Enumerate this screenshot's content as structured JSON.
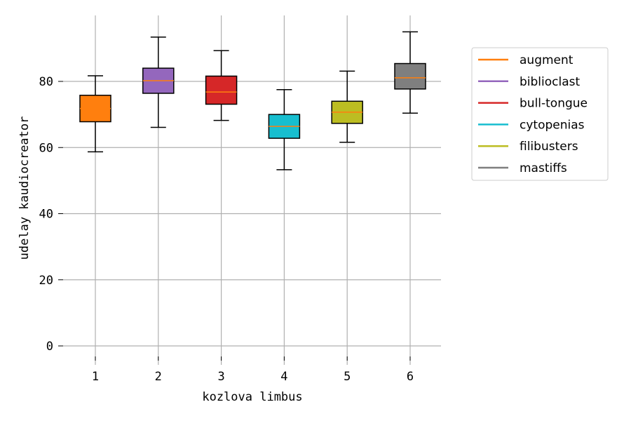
{
  "chart_data": {
    "type": "box",
    "xlabel": "kozlova limbus",
    "ylabel": "udelay kaudiocreator",
    "ylim": [
      -5,
      100
    ],
    "yticks": [
      0,
      20,
      40,
      60,
      80
    ],
    "categories": [
      "1",
      "2",
      "3",
      "4",
      "5",
      "6"
    ],
    "grid": true,
    "legend_position": "right, outside plot",
    "median_color": "#ff7f0e",
    "series": [
      {
        "name": "augment",
        "color": "#ff7f0e",
        "whisker_low": 58.7,
        "q1": 67.8,
        "median": 71.8,
        "q3": 75.8,
        "whisker_high": 81.7
      },
      {
        "name": "biblioclast",
        "color": "#9467bd",
        "whisker_low": 66.1,
        "q1": 76.4,
        "median": 80.2,
        "q3": 84.0,
        "whisker_high": 93.4
      },
      {
        "name": "bull-tongue",
        "color": "#d62728",
        "whisker_low": 68.2,
        "q1": 73.1,
        "median": 76.8,
        "q3": 81.6,
        "whisker_high": 89.3
      },
      {
        "name": "cytopenias",
        "color": "#17becf",
        "whisker_low": 53.3,
        "q1": 62.8,
        "median": 66.4,
        "q3": 70.0,
        "whisker_high": 77.5
      },
      {
        "name": "filibusters",
        "color": "#bcbd22",
        "whisker_low": 61.6,
        "q1": 67.3,
        "median": 70.7,
        "q3": 74.0,
        "whisker_high": 83.1
      },
      {
        "name": "mastiffs",
        "color": "#7f7f7f",
        "whisker_low": 70.4,
        "q1": 77.7,
        "median": 81.1,
        "q3": 85.4,
        "whisker_high": 95.0
      }
    ]
  }
}
